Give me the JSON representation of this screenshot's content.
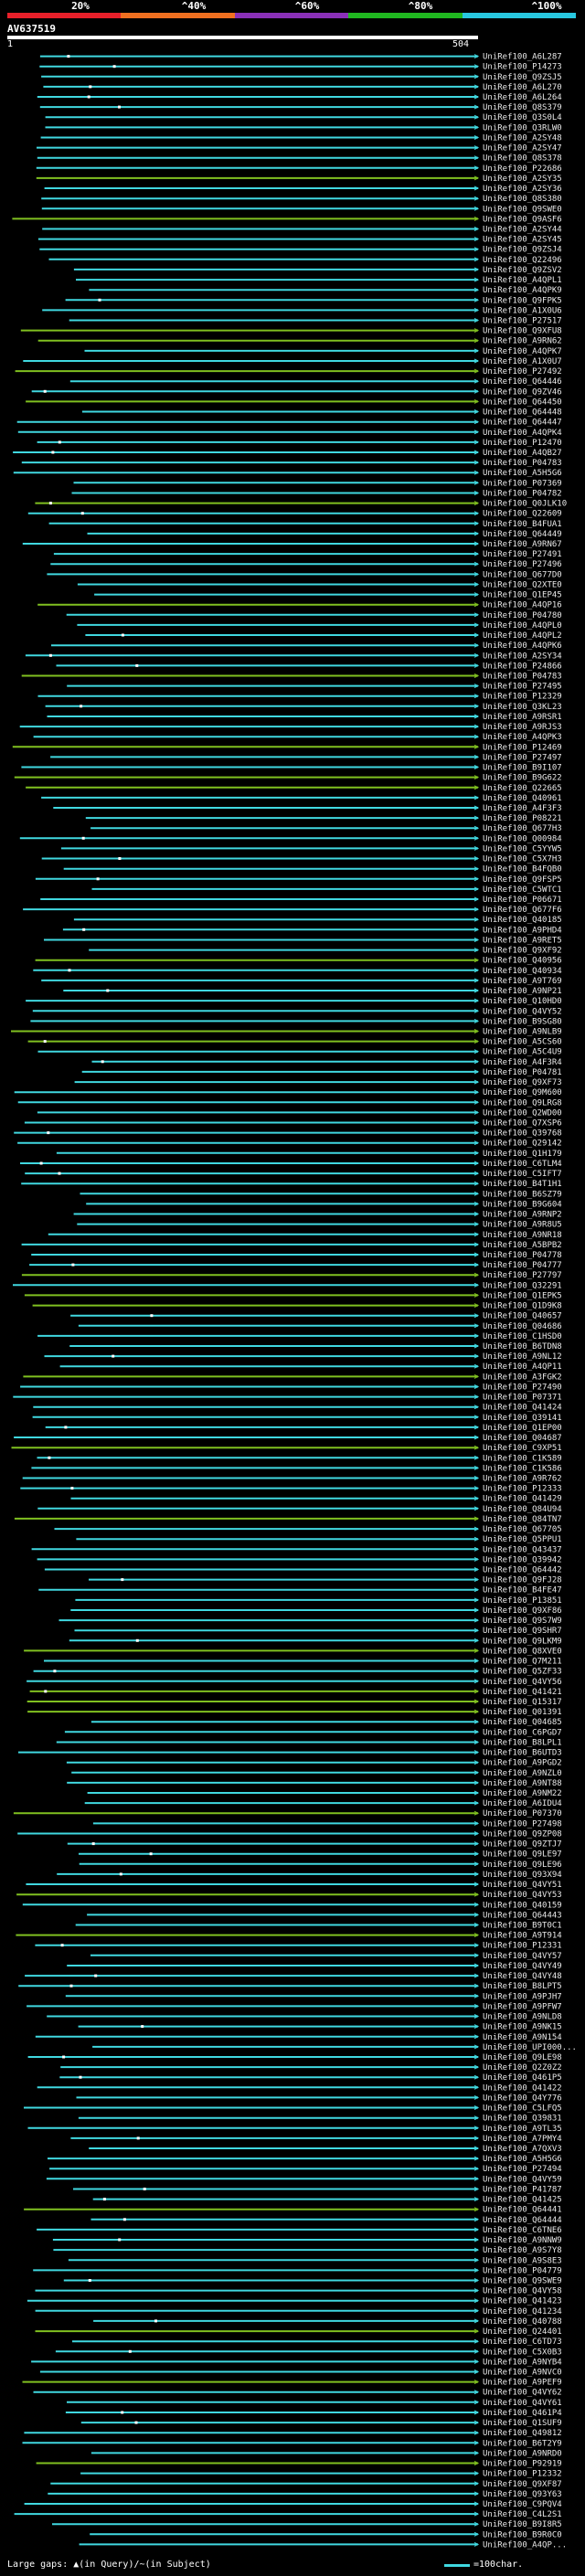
{
  "header": {
    "percent_labels": [
      "20%",
      "^40%",
      "^60%",
      "^80%",
      "^100%"
    ],
    "colors": [
      "#e8202a",
      "#f07020",
      "#8a30b8",
      "#20b820",
      "#28c8e0"
    ],
    "accession": "AV637519",
    "scale_start": "1",
    "scale_end": "504"
  },
  "hit_colors": {
    "full": "#40d8e0",
    "partial": "#80c020",
    "gap": "#ffffff"
  },
  "hits": [
    "UniRef100_A6L287",
    "UniRef100_P14273",
    "UniRef100_Q9ZSJ5",
    "UniRef100_A6L270",
    "UniRef100_A6L264",
    "UniRef100_Q8S379",
    "UniRef100_Q3S0L4",
    "UniRef100_Q3RLW0",
    "UniRef100_A2SY48",
    "UniRef100_A2SY47",
    "UniRef100_Q8S378",
    "UniRef100_P22686",
    "UniRef100_A2SY35",
    "UniRef100_A2SY36",
    "UniRef100_Q8S380",
    "UniRef100_Q9SWE0",
    "UniRef100_Q9ASF6",
    "UniRef100_A2SY44",
    "UniRef100_A2SY45",
    "UniRef100_Q9ZSJ4",
    "UniRef100_Q22496",
    "UniRef100_Q9ZSV2",
    "UniRef100_A4QPL1",
    "UniRef100_A4QPK9",
    "UniRef100_Q9FPK5",
    "UniRef100_A1X0U6",
    "UniRef100_P27517",
    "UniRef100_Q9XFU8",
    "UniRef100_A9RN62",
    "UniRef100_A4QPK7",
    "UniRef100_A1X0U7",
    "UniRef100_P27492",
    "UniRef100_Q64446",
    "UniRef100_Q9ZV46",
    "UniRef100_Q64450",
    "UniRef100_Q64448",
    "UniRef100_Q64447",
    "UniRef100_A4QPK4",
    "UniRef100_P12470",
    "UniRef100_A4QB27",
    "UniRef100_P04783",
    "UniRef100_A5H5G6",
    "UniRef100_P07369",
    "UniRef100_P04782",
    "UniRef100_Q0JLK10",
    "UniRef100_Q22609",
    "UniRef100_B4FUA1",
    "UniRef100_Q64449",
    "UniRef100_A9RN67",
    "UniRef100_P27491",
    "UniRef100_P27496",
    "UniRef100_Q677D0",
    "UniRef100_Q2XTE0",
    "UniRef100_Q1EP45",
    "UniRef100_A4QP16",
    "UniRef100_P04780",
    "UniRef100_A4QPL0",
    "UniRef100_A4QPL2",
    "UniRef100_A4QPK6",
    "UniRef100_A2SY34",
    "UniRef100_P24866",
    "UniRef100_P04783",
    "UniRef100_P27495",
    "UniRef100_P12329",
    "UniRef100_Q3KL23",
    "UniRef100_A9RSR1",
    "UniRef100_A9RJS3",
    "UniRef100_A4QPK3",
    "UniRef100_P12469",
    "UniRef100_P27497",
    "UniRef100_B9I107",
    "UniRef100_B9G622",
    "UniRef100_Q22665",
    "UniRef100_Q40961",
    "UniRef100_A4F3F3",
    "UniRef100_P08221",
    "UniRef100_Q677H3",
    "UniRef100_Q00984",
    "UniRef100_C5YYW5",
    "UniRef100_C5X7H3",
    "UniRef100_B4FQB0",
    "UniRef100_Q9FSP5",
    "UniRef100_C5WTC1",
    "UniRef100_P06671",
    "UniRef100_Q677F6",
    "UniRef100_Q40185",
    "UniRef100_A9PHD4",
    "UniRef100_A9RET5",
    "UniRef100_Q9XF92",
    "UniRef100_Q40956",
    "UniRef100_Q40934",
    "UniRef100_A9T769",
    "UniRef100_A9NP21",
    "UniRef100_Q10HD0",
    "UniRef100_Q4VY52",
    "UniRef100_B9SG80",
    "UniRef100_A9NLB9",
    "UniRef100_A5CS60",
    "UniRef100_A5C4U9",
    "UniRef100_A4F3R4",
    "UniRef100_P04781",
    "UniRef100_Q9XF73",
    "UniRef100_Q9M600",
    "UniRef100_Q9LRG8",
    "UniRef100_Q2WD00",
    "UniRef100_Q7XSP6",
    "UniRef100_Q39768",
    "UniRef100_Q29142",
    "UniRef100_Q1H179",
    "UniRef100_C6TLM4",
    "UniRef100_C5IFT7",
    "UniRef100_B4T1H1",
    "UniRef100_B6SZ79",
    "UniRef100_B9G604",
    "UniRef100_A9RNP2",
    "UniRef100_A9R8U5",
    "UniRef100_A9NR18",
    "UniRef100_A5BPB2",
    "UniRef100_P04778",
    "UniRef100_P04777",
    "UniRef100_P27797",
    "UniRef100_Q32291",
    "UniRef100_Q1EPK5",
    "UniRef100_Q1D9K8",
    "UniRef100_Q40657",
    "UniRef100_Q04686",
    "UniRef100_C1HSD0",
    "UniRef100_B6TDN8",
    "UniRef100_A9NL12",
    "UniRef100_A4QP11",
    "UniRef100_A3FGK2",
    "UniRef100_P27490",
    "UniRef100_P07371",
    "UniRef100_Q41424",
    "UniRef100_Q39141",
    "UniRef100_Q1EP00",
    "UniRef100_Q04687",
    "UniRef100_C9XP51",
    "UniRef100_C1K589",
    "UniRef100_C1K586",
    "UniRef100_A9R762",
    "UniRef100_P12333",
    "UniRef100_Q41429",
    "UniRef100_Q84U94",
    "UniRef100_Q84TN7",
    "UniRef100_Q67705",
    "UniRef100_Q5PPU1",
    "UniRef100_Q43437",
    "UniRef100_Q39942",
    "UniRef100_Q64442",
    "UniRef100_Q9FJ28",
    "UniRef100_B4FE47",
    "UniRef100_P13851",
    "UniRef100_Q9XF86",
    "UniRef100_Q9S7W9",
    "UniRef100_Q9SHR7",
    "UniRef100_Q9LKM9",
    "UniRef100_Q8XVE0",
    "UniRef100_Q7M211",
    "UniRef100_Q5ZF33",
    "UniRef100_Q4VY56",
    "UniRef100_Q41421",
    "UniRef100_Q15317",
    "UniRef100_Q01391",
    "UniRef100_Q04685",
    "UniRef100_C6PGD7",
    "UniRef100_B8LPL1",
    "UniRef100_B6UTD3",
    "UniRef100_A9PGD2",
    "UniRef100_A9NZL0",
    "UniRef100_A9NT88",
    "UniRef100_A9NM22",
    "UniRef100_A6IDU4",
    "UniRef100_P07370",
    "UniRef100_P27498",
    "UniRef100_Q9ZP08",
    "UniRef100_Q9ZTJ7",
    "UniRef100_Q9LE97",
    "UniRef100_Q9LE96",
    "UniRef100_Q93X94",
    "UniRef100_Q4VY51",
    "UniRef100_Q4VY53",
    "UniRef100_Q40159",
    "UniRef100_Q64443",
    "UniRef100_B9T0C1",
    "UniRef100_A9T914",
    "UniRef100_P12331",
    "UniRef100_Q4VY57",
    "UniRef100_Q4VY49",
    "UniRef100_Q4VY48",
    "UniRef100_B8LPT5",
    "UniRef100_A9PJH7",
    "UniRef100_A9PFW7",
    "UniRef100_A9NLD8",
    "UniRef100_A9NK15",
    "UniRef100_A9N154",
    "UniRef100_UPI000...",
    "UniRef100_Q9LE98",
    "UniRef100_Q2Z0Z2",
    "UniRef100_Q461P5",
    "UniRef100_Q41422",
    "UniRef100_Q4Y776",
    "UniRef100_C5LFQ5",
    "UniRef100_Q39831",
    "UniRef100_A9TL35",
    "UniRef100_A7PMY4",
    "UniRef100_A7QXV3",
    "UniRef100_A5H5G6",
    "UniRef100_P27494",
    "UniRef100_Q4VY59",
    "UniRef100_P41787",
    "UniRef100_Q41425",
    "UniRef100_Q64441",
    "UniRef100_Q64444",
    "UniRef100_C6TNE6",
    "UniRef100_A9NNW9",
    "UniRef100_A9S7Y8",
    "UniRef100_A9S8E3",
    "UniRef100_P04779",
    "UniRef100_Q9SWE9",
    "UniRef100_Q4VY58",
    "UniRef100_Q41423",
    "UniRef100_Q41234",
    "UniRef100_Q40788",
    "UniRef100_Q24401",
    "UniRef100_C6TD73",
    "UniRef100_C5X0B3",
    "UniRef100_A9NYB4",
    "UniRef100_A9NVC0",
    "UniRef100_A9PEF9",
    "UniRef100_Q4VY62",
    "UniRef100_Q4VY61",
    "UniRef100_Q461P4",
    "UniRef100_Q1SUF9",
    "UniRef100_Q49812",
    "UniRef100_B6T2Y9",
    "UniRef100_A9NRD0",
    "UniRef100_P92919",
    "UniRef100_P12332",
    "UniRef100_Q9XF87",
    "UniRef100_Q93Y63",
    "UniRef100_C9PQV4",
    "UniRef100_C4L2S1",
    "UniRef100_B9I8R5",
    "UniRef100_B9R0C0",
    "UniRef100_A4QP..."
  ],
  "legend": {
    "left_text": "Large gaps: ▲(in Query)/~(in Subject)",
    "right_text": "=100char."
  }
}
